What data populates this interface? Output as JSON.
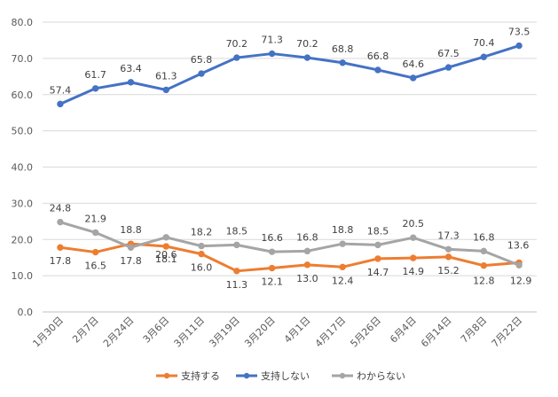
{
  "chart_data": {
    "type": "line",
    "categories": [
      "1月30日",
      "2月7日",
      "2月24日",
      "3月6日",
      "3月11日",
      "3月19日",
      "3月20日",
      "4月1日",
      "4月17日",
      "5月26日",
      "6月4日",
      "6月14日",
      "7月8日",
      "7月22日"
    ],
    "ylim": [
      0,
      80
    ],
    "yticks": [
      "0.0",
      "10.0",
      "20.0",
      "30.0",
      "40.0",
      "50.0",
      "60.0",
      "70.0",
      "80.0"
    ],
    "grid": true,
    "legend_position": "bottom",
    "series": [
      {
        "name": "支持する",
        "color": "#ED7D31",
        "values": [
          17.8,
          16.5,
          18.8,
          18.1,
          16.0,
          11.3,
          12.1,
          13.0,
          12.4,
          14.7,
          14.9,
          15.2,
          12.8,
          13.6
        ],
        "labels": [
          "17.8",
          "16.5",
          "18.8",
          "18.1",
          "16.0",
          "11.3",
          "12.1",
          "13.0",
          "12.4",
          "14.7",
          "14.9",
          "15.2",
          "12.8",
          "13.6"
        ]
      },
      {
        "name": "支持しない",
        "color": "#4472C4",
        "values": [
          57.4,
          61.7,
          63.4,
          61.3,
          65.8,
          70.2,
          71.3,
          70.2,
          68.8,
          66.8,
          64.6,
          67.5,
          70.4,
          73.5
        ],
        "labels": [
          "57.4",
          "61.7",
          "63.4",
          "61.3",
          "65.8",
          "70.2",
          "71.3",
          "70.2",
          "68.8",
          "66.8",
          "64.6",
          "67.5",
          "70.4",
          "73.5"
        ]
      },
      {
        "name": "わからない",
        "color": "#A5A5A5",
        "values": [
          24.8,
          21.9,
          17.8,
          20.6,
          18.2,
          18.5,
          16.6,
          16.8,
          18.8,
          18.5,
          20.5,
          17.3,
          16.8,
          12.9
        ],
        "labels": [
          "24.8",
          "21.9",
          "17.8",
          "20.6",
          "18.2",
          "18.5",
          "16.6",
          "16.8",
          "18.8",
          "18.5",
          "20.5",
          "17.3",
          "16.8",
          "12.9"
        ]
      }
    ]
  }
}
